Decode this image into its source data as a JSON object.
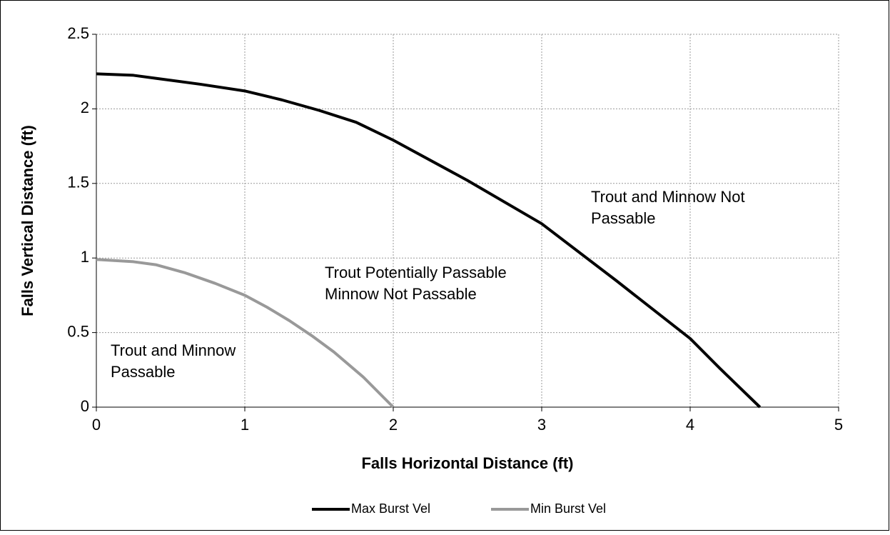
{
  "chart_data": {
    "type": "line",
    "xlabel": "Falls Horizontal Distance (ft)",
    "ylabel": "Falls Vertical Distance (ft)",
    "xlim": [
      0,
      5
    ],
    "xticks": [
      0,
      1,
      2,
      3,
      4,
      5
    ],
    "ylim": [
      0,
      2.5
    ],
    "yticks": [
      0,
      0.5,
      1,
      1.5,
      2,
      2.5
    ],
    "grid": true,
    "legend": "bottom",
    "series": [
      {
        "name": "Max Burst Vel",
        "color": "#000000",
        "x": [
          0,
          0.25,
          0.4,
          0.7,
          1,
          1.25,
          1.5,
          1.75,
          2,
          2.5,
          3,
          3.5,
          4,
          4.2,
          4.47
        ],
        "values": [
          2.235,
          2.225,
          2.205,
          2.165,
          2.12,
          2.06,
          1.99,
          1.91,
          1.79,
          1.52,
          1.23,
          0.85,
          0.46,
          0.26,
          0
        ]
      },
      {
        "name": "Min Burst Vel",
        "color": "#999999",
        "x": [
          0,
          0.25,
          0.4,
          0.6,
          0.8,
          1,
          1.15,
          1.3,
          1.45,
          1.6,
          1.8,
          1.9,
          2
        ],
        "values": [
          0.99,
          0.975,
          0.955,
          0.9,
          0.83,
          0.75,
          0.67,
          0.58,
          0.48,
          0.37,
          0.2,
          0.1,
          0
        ]
      }
    ],
    "annotations": [
      {
        "lines": [
          "Trout and Minnow Not",
          "Passable"
        ]
      },
      {
        "lines": [
          "Trout Potentially Passable",
          "Minnow Not Passable"
        ]
      },
      {
        "lines": [
          "Trout and Minnow",
          "Passable"
        ]
      }
    ]
  }
}
